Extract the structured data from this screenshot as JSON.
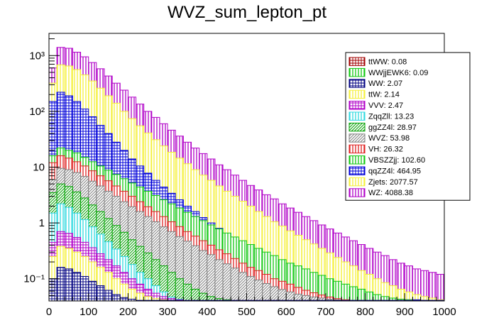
{
  "chart_data": {
    "type": "histogram-stacked",
    "title": "WVZ_sum_lepton_pt",
    "xlabel": "",
    "ylabel": "",
    "xlim": [
      0,
      1000
    ],
    "ylim": [
      0.04,
      2500
    ],
    "yscale": "log",
    "bin_width": 20,
    "x_ticks": [
      0,
      100,
      200,
      300,
      400,
      500,
      600,
      700,
      800,
      900,
      1000
    ],
    "x_tick_labels": [
      "0",
      "100",
      "200",
      "300",
      "400",
      "500",
      "600",
      "700",
      "800",
      "900",
      "1000"
    ],
    "y_tick_labels": [
      {
        "value": 0.1,
        "label": "10⁻¹"
      },
      {
        "value": 1,
        "label": "1"
      },
      {
        "value": 10,
        "label": "10"
      },
      {
        "value": 100,
        "label": "10²"
      },
      {
        "value": 1000,
        "label": "10³"
      }
    ],
    "legend_position": "top-right",
    "series": [
      {
        "name": "WZ",
        "label": "WZ: 4088.38",
        "color": "#b000c8",
        "style": "vertical-hatch",
        "totals": [
          600,
          1400,
          1350,
          1150,
          950,
          750,
          580,
          430,
          320,
          240,
          180,
          135,
          100,
          78,
          60,
          46,
          36,
          28,
          22,
          17.5,
          14,
          11,
          9,
          7.2,
          5.8,
          4.7,
          3.9,
          3.2,
          2.7,
          2.2,
          1.85,
          1.55,
          1.3,
          1.1,
          0.92,
          0.78,
          0.66,
          0.56,
          0.48,
          0.41,
          0.35,
          0.3,
          0.26,
          0.22,
          0.19,
          0.17,
          0.15,
          0.14,
          0.13,
          0.12
        ]
      },
      {
        "name": "Zjets",
        "label": "Zjets: 2077.57",
        "color": "#f5f03a",
        "style": "vertical-hatch",
        "totals": [
          320,
          680,
          650,
          560,
          450,
          350,
          260,
          190,
          140,
          100,
          74,
          55,
          41,
          31,
          24,
          18.5,
          14.5,
          11.5,
          9,
          7.2,
          5.8,
          4.6,
          3.7,
          3,
          2.45,
          2,
          1.6,
          1.3,
          1.05,
          0.88,
          0.72,
          0.6,
          0.5,
          0.42,
          0.35,
          0.29,
          0.24,
          0.2,
          0.17,
          0.14,
          0.12,
          0.1,
          0.085,
          0.075,
          0.065,
          0.058,
          0.052,
          0.048,
          0.045,
          0.042
        ]
      },
      {
        "name": "qqZZ4l",
        "label": "qqZZ4l: 464.95",
        "color": "#0000d8",
        "style": "cross-hatch",
        "totals": [
          150,
          220,
          190,
          150,
          110,
          80,
          56,
          40,
          28,
          20,
          14,
          10.5,
          7.8,
          5.8,
          4.4,
          3.4,
          2.6,
          2,
          1.6,
          1.25,
          1,
          0.8,
          0.65,
          0.53,
          0.43,
          0.35,
          0.29,
          0.24,
          0.2,
          0.17,
          0.14,
          0.12,
          0.1,
          0.09,
          0.08,
          0.07,
          0.065,
          0.06,
          0.055,
          0.05,
          0.048,
          0.046,
          0.045,
          0.044,
          0.043,
          0.042,
          0.042,
          0.041,
          0.041,
          0.041
        ]
      },
      {
        "name": "VBSZZjj",
        "label": "VBSZZjj: 102.60",
        "color": "#10c810",
        "style": "vertical-hatch",
        "totals": [
          16,
          22,
          20,
          18,
          15,
          12.5,
          10.5,
          8.8,
          7.4,
          6.2,
          5.2,
          4.4,
          3.7,
          3.1,
          2.6,
          2.2,
          1.85,
          1.55,
          1.3,
          1.1,
          0.92,
          0.78,
          0.66,
          0.56,
          0.48,
          0.41,
          0.35,
          0.3,
          0.26,
          0.22,
          0.19,
          0.17,
          0.15,
          0.13,
          0.115,
          0.1,
          0.09,
          0.08,
          0.072,
          0.065,
          0.058,
          0.052,
          0.048,
          0.045,
          0.043,
          0.042,
          0.041,
          0.041,
          0.041,
          0.041
        ]
      },
      {
        "name": "VH",
        "label": "VH: 26.32",
        "color": "#e02020",
        "style": "vertical-hatch",
        "totals": [
          12,
          16,
          14.5,
          12.5,
          10.5,
          8.6,
          7,
          5.7,
          4.6,
          3.7,
          3,
          2.4,
          1.95,
          1.6,
          1.3,
          1.05,
          0.86,
          0.7,
          0.58,
          0.48,
          0.4,
          0.33,
          0.28,
          0.23,
          0.19,
          0.16,
          0.14,
          0.12,
          0.1,
          0.09,
          0.08,
          0.07,
          0.062,
          0.056,
          0.051,
          0.047,
          0.044,
          0.042,
          0.041,
          0.041,
          0.041,
          0.041,
          0.041,
          0.041,
          0.041,
          0.041,
          0.041,
          0.041,
          0.041,
          0.041
        ]
      },
      {
        "name": "WVZ",
        "label": "WVZ: 53.98",
        "color": "#808080",
        "style": "diagonal-hatch",
        "totals": [
          6,
          9.5,
          9,
          8,
          6.8,
          5.6,
          4.6,
          3.7,
          3,
          2.4,
          1.95,
          1.6,
          1.3,
          1.05,
          0.85,
          0.7,
          0.57,
          0.47,
          0.39,
          0.32,
          0.27,
          0.22,
          0.185,
          0.155,
          0.13,
          0.11,
          0.095,
          0.082,
          0.072,
          0.064,
          0.058,
          0.053,
          0.05,
          0.047,
          0.045,
          0.043,
          0.042,
          0.041,
          0.041,
          0.041,
          0.041,
          0.041,
          0.041,
          0.041,
          0.041,
          0.041,
          0.041,
          0.041,
          0.041,
          0.041
        ]
      },
      {
        "name": "ggZZ4l",
        "label": "ggZZ4l: 28.97",
        "color": "#00a000",
        "style": "diagonal-hatch",
        "totals": [
          3.5,
          5,
          4.5,
          3.6,
          2.8,
          2.1,
          1.6,
          1.2,
          0.9,
          0.68,
          0.5,
          0.38,
          0.29,
          0.22,
          0.17,
          0.13,
          0.1,
          0.08,
          0.065,
          0.055,
          0.048,
          0.044,
          0.042,
          0.041,
          0.041,
          0.041,
          0.041,
          0.041,
          0.041,
          0.041,
          0.041,
          0.041,
          0.041,
          0.041,
          0.041,
          0.041,
          0.041,
          0.041,
          0.041,
          0.041,
          0.041,
          0.041,
          0.041,
          0.041,
          0.041,
          0.041,
          0.041,
          0.041,
          0.041,
          0.041
        ]
      },
      {
        "name": "ZqqZll",
        "label": "ZqqZll: 13.23",
        "color": "#30d8e0",
        "style": "vertical-hatch",
        "totals": [
          1.5,
          2.2,
          1.9,
          1.5,
          1.15,
          0.85,
          0.63,
          0.46,
          0.34,
          0.25,
          0.18,
          0.13,
          0.1,
          0.075,
          0.058,
          0.047,
          0.043,
          0.041,
          0.041,
          0.041,
          0.041,
          0.041,
          0.041,
          0.041,
          0.041,
          0.041,
          0.041,
          0.041,
          0.041,
          0.041,
          0.041,
          0.041,
          0.041,
          0.041,
          0.041,
          0.041,
          0.041,
          0.041,
          0.041,
          0.041,
          0.041,
          0.041,
          0.041,
          0.041,
          0.041,
          0.041,
          0.041,
          0.041,
          0.041,
          0.041
        ]
      },
      {
        "name": "VVV",
        "label": "VVV: 2.47",
        "color": "#b000c8",
        "style": "cross-hatch",
        "totals": [
          0.45,
          0.7,
          0.65,
          0.55,
          0.45,
          0.36,
          0.28,
          0.22,
          0.17,
          0.13,
          0.1,
          0.08,
          0.065,
          0.055,
          0.048,
          0.044,
          0.042,
          0.041,
          0.041,
          0.041,
          0.041,
          0.041,
          0.041,
          0.041,
          0.041,
          0.041,
          0.041,
          0.041,
          0.041,
          0.041,
          0.041,
          0.041,
          0.041,
          0.041,
          0.041,
          0.041,
          0.041,
          0.041,
          0.041,
          0.041,
          0.041,
          0.041,
          0.041,
          0.041,
          0.041,
          0.041,
          0.041,
          0.041,
          0.041,
          0.041
        ]
      },
      {
        "name": "ttW",
        "label": "ttW: 2.14",
        "color": "#f5f03a",
        "style": "vertical-hatch",
        "totals": [
          0.25,
          0.38,
          0.35,
          0.3,
          0.25,
          0.2,
          0.16,
          0.13,
          0.1,
          0.08,
          0.065,
          0.055,
          0.048,
          0.044,
          0.042,
          0.041,
          0.041,
          0.041,
          0.041,
          0.041,
          0.041,
          0.041,
          0.041,
          0.041,
          0.041,
          0.041,
          0.041,
          0.041,
          0.041,
          0.041,
          0.041,
          0.041,
          0.041,
          0.041,
          0.041,
          0.041,
          0.041,
          0.041,
          0.041,
          0.041,
          0.041,
          0.041,
          0.041,
          0.041,
          0.041,
          0.041,
          0.041,
          0.041,
          0.041,
          0.041
        ]
      },
      {
        "name": "WW",
        "label": "WW: 2.07",
        "color": "#000080",
        "style": "cross-hatch",
        "totals": [
          0.1,
          0.16,
          0.15,
          0.13,
          0.11,
          0.09,
          0.075,
          0.062,
          0.052,
          0.046,
          0.043,
          0.041,
          0.041,
          0.041,
          0.041,
          0.041,
          0.041,
          0.041,
          0.041,
          0.041,
          0.041,
          0.041,
          0.041,
          0.041,
          0.041,
          0.041,
          0.041,
          0.041,
          0.041,
          0.041,
          0.041,
          0.041,
          0.041,
          0.041,
          0.041,
          0.041,
          0.041,
          0.041,
          0.041,
          0.041,
          0.041,
          0.041,
          0.041,
          0.041,
          0.041,
          0.041,
          0.041,
          0.041,
          0.041,
          0.041
        ]
      },
      {
        "name": "WWjjEWK6",
        "label": "WWjjEWK6: 0.09",
        "color": "#10c810",
        "style": "vertical-hatch",
        "totals": []
      },
      {
        "name": "ttWW",
        "label": "ttWW: 0.08",
        "color": "#a00000",
        "style": "cross-hatch",
        "totals": []
      }
    ],
    "legend_order": [
      "ttWW",
      "WWjjEWK6",
      "WW",
      "ttW",
      "VVV",
      "ZqqZll",
      "ggZZ4l",
      "WVZ",
      "VH",
      "VBSZZjj",
      "qqZZ4l",
      "Zjets",
      "WZ"
    ]
  }
}
